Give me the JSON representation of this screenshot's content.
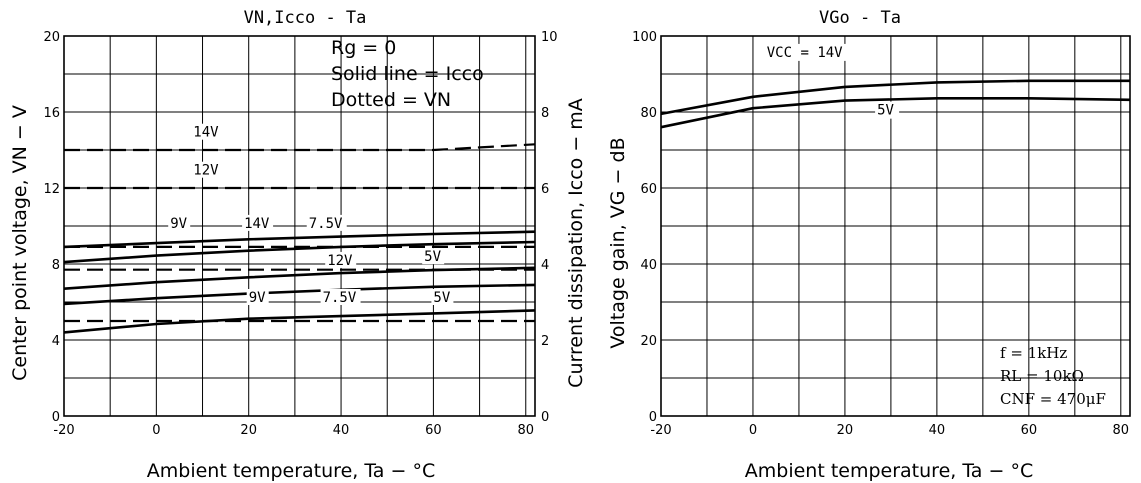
{
  "chart_data": [
    {
      "type": "line",
      "title": "VN,Icco - Ta",
      "xlabel": "Ambient temperature, Ta − °C",
      "ylabel_left": "Center point voltage, VN − V",
      "ylabel_right": "Current dissipation, Icco − mA",
      "xlim": [
        -20,
        82
      ],
      "ylim_left": [
        0,
        20
      ],
      "ylim_right": [
        0,
        10
      ],
      "x_ticks": [
        "-20",
        "0",
        "20",
        "40",
        "60",
        "80"
      ],
      "y_ticks_left": [
        "0",
        "4",
        "8",
        "12",
        "16",
        "20"
      ],
      "y_ticks_right": [
        "0",
        "2",
        "4",
        "6",
        "8",
        "10"
      ],
      "grid": true,
      "notes": [
        "Rg = 0",
        "Solid line = Icco",
        "Dotted = VN"
      ],
      "series": [
        {
          "label": "14V",
          "axis": "left",
          "style": "dashed",
          "x": [
            -20,
            60,
            82
          ],
          "y": [
            14.0,
            14.0,
            14.3
          ]
        },
        {
          "label": "12V",
          "axis": "left",
          "style": "dashed",
          "x": [
            -20,
            82
          ],
          "y": [
            12.0,
            12.0
          ]
        },
        {
          "label": "9V",
          "axis": "left",
          "style": "dashed",
          "x": [
            -20,
            82
          ],
          "y": [
            8.9,
            8.9
          ]
        },
        {
          "label": "7.5V",
          "axis": "left",
          "style": "dashed",
          "x": [
            -20,
            82
          ],
          "y": [
            7.7,
            7.7
          ]
        },
        {
          "label": "5V",
          "axis": "left",
          "style": "dashed",
          "x": [
            -20,
            82
          ],
          "y": [
            5.0,
            5.0
          ]
        },
        {
          "label": "14V",
          "axis": "right",
          "style": "solid",
          "x": [
            -20,
            0,
            20,
            40,
            60,
            82
          ],
          "y": [
            4.45,
            4.55,
            4.65,
            4.72,
            4.79,
            4.85
          ]
        },
        {
          "label": "12V",
          "axis": "right",
          "style": "solid",
          "x": [
            -20,
            0,
            20,
            40,
            60,
            82
          ],
          "y": [
            4.05,
            4.22,
            4.35,
            4.45,
            4.52,
            4.58
          ]
        },
        {
          "label": "9V",
          "axis": "right",
          "style": "solid",
          "x": [
            -20,
            0,
            20,
            40,
            60,
            82
          ],
          "y": [
            3.35,
            3.52,
            3.65,
            3.76,
            3.84,
            3.9
          ]
        },
        {
          "label": "7.5V",
          "axis": "right",
          "style": "solid",
          "x": [
            -20,
            0,
            20,
            40,
            60,
            82
          ],
          "y": [
            2.95,
            3.1,
            3.22,
            3.32,
            3.4,
            3.45
          ]
        },
        {
          "label": "5V",
          "axis": "right",
          "style": "solid",
          "x": [
            -20,
            0,
            20,
            40,
            60,
            82
          ],
          "y": [
            2.2,
            2.42,
            2.56,
            2.63,
            2.7,
            2.78
          ]
        }
      ],
      "curve_labels": [
        {
          "text": "14V",
          "x": 8,
          "y": 14.7
        },
        {
          "text": "12V",
          "x": 8,
          "y": 12.7
        },
        {
          "text": "9V",
          "x": 3,
          "y": 9.9
        },
        {
          "text": "14V",
          "x": 19,
          "y": 9.9
        },
        {
          "text": "7.5V",
          "x": 33,
          "y": 9.9
        },
        {
          "text": "12V",
          "x": 37,
          "y": 7.95
        },
        {
          "text": "5V",
          "x": 58,
          "y": 8.15
        },
        {
          "text": "9V",
          "x": 20,
          "y": 6.0
        },
        {
          "text": "7.5V",
          "x": 36,
          "y": 6.0
        },
        {
          "text": "5V",
          "x": 60,
          "y": 6.0
        }
      ]
    },
    {
      "type": "line",
      "title": "VGo - Ta",
      "xlabel": "Ambient temperature, Ta − °C",
      "ylabel": "Voltage gain, VG − dB",
      "xlim": [
        -20,
        82
      ],
      "ylim": [
        0,
        100
      ],
      "x_ticks": [
        "-20",
        "0",
        "20",
        "40",
        "60",
        "80"
      ],
      "y_ticks": [
        "0",
        "20",
        "40",
        "60",
        "80",
        "100"
      ],
      "grid": true,
      "conditions": [
        "f = 1kHz",
        "RL = 10kΩ",
        "CNF = 470μF"
      ],
      "series": [
        {
          "label": "VCC = 14V",
          "x": [
            -20,
            0,
            20,
            40,
            60,
            82
          ],
          "y": [
            79.5,
            84.0,
            86.6,
            87.8,
            88.2,
            88.2
          ]
        },
        {
          "label": "5V",
          "x": [
            -20,
            0,
            20,
            40,
            60,
            82
          ],
          "y": [
            76.0,
            81.0,
            83.0,
            83.6,
            83.6,
            83.2
          ]
        }
      ]
    }
  ]
}
